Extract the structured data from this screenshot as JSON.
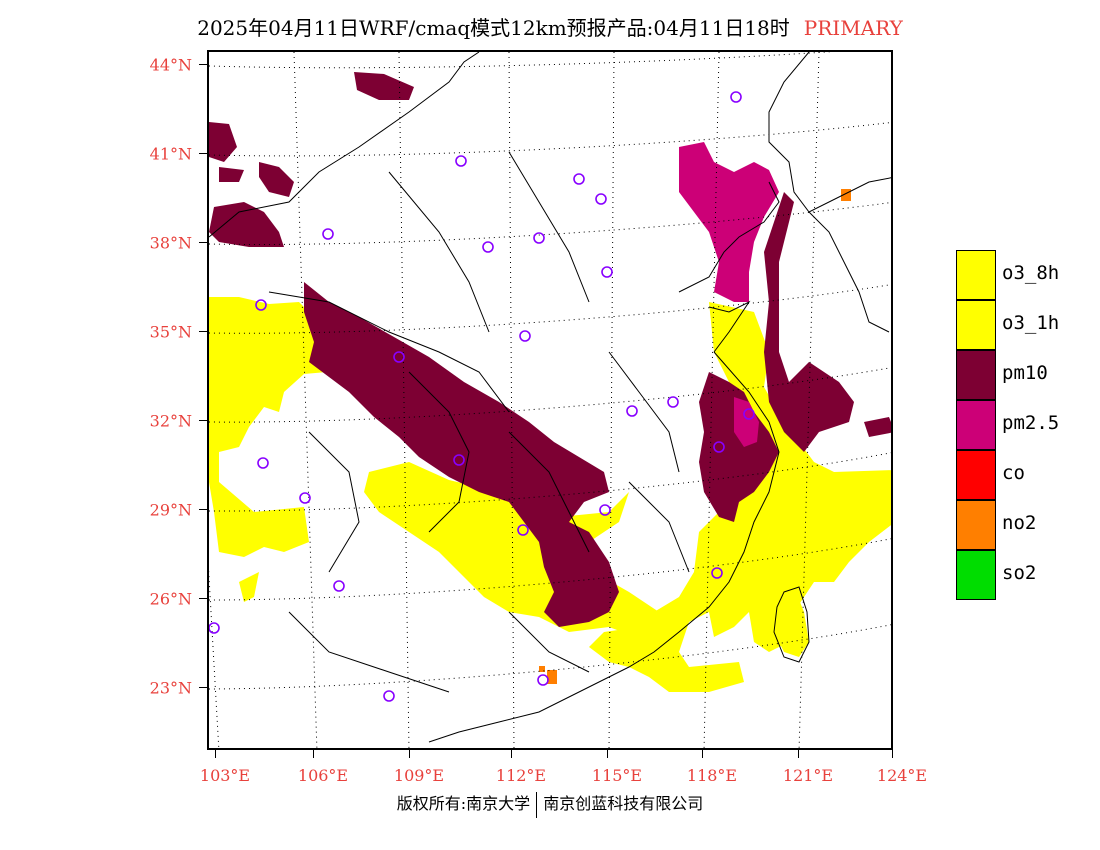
{
  "header": {
    "title": "2025年04月11日WRF/cmaq模式12km预报产品:04月11日18时",
    "tag": "PRIMARY"
  },
  "map": {
    "lat_labels": [
      "44°N",
      "41°N",
      "38°N",
      "35°N",
      "32°N",
      "29°N",
      "26°N",
      "23°N"
    ],
    "lon_labels": [
      "103°E",
      "106°E",
      "109°E",
      "112°E",
      "115°E",
      "118°E",
      "121°E",
      "124°E"
    ],
    "colors": {
      "o3_8h": "#ffff00",
      "o3_1h": "#ffff00",
      "pm10": "#7d0033",
      "pm2_5": "#cc0077",
      "co": "#ff0000",
      "no2": "#ff7f00",
      "so2": "#00dd00",
      "station": "#8800ff",
      "grid": "#000000",
      "boundary": "#000000"
    }
  },
  "legend": [
    {
      "label": "o3_8h",
      "color": "#ffff00"
    },
    {
      "label": "o3_1h",
      "color": "#ffff00"
    },
    {
      "label": "pm10",
      "color": "#7d0033"
    },
    {
      "label": "pm2.5",
      "color": "#cc0077"
    },
    {
      "label": "co",
      "color": "#ff0000"
    },
    {
      "label": "no2",
      "color": "#ff7f00"
    },
    {
      "label": "so2",
      "color": "#00dd00"
    }
  ],
  "footer": {
    "left": "版权所有:南京大学",
    "right": "南京创蓝科技有限公司"
  }
}
